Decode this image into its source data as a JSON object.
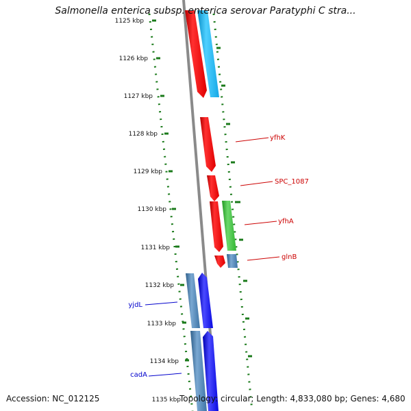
{
  "title": "Salmonella enterica subsp. enterica serovar Paratyphi C stra...",
  "ticks": [
    {
      "label": "1125 kbp"
    },
    {
      "label": "1126 kbp"
    },
    {
      "label": "1127 kbp"
    },
    {
      "label": "1128 kbp"
    },
    {
      "label": "1129 kbp"
    },
    {
      "label": "1130 kbp"
    },
    {
      "label": "1131 kbp"
    },
    {
      "label": "1132 kbp"
    },
    {
      "label": "1133 kbp"
    },
    {
      "label": "1134 kbp"
    },
    {
      "label": "1135 kbp"
    }
  ],
  "gene_labels": {
    "yfhK": "yfhK",
    "SPC_1087": "SPC_1087",
    "yfhA": "yfhA",
    "glnB": "glnB",
    "yjdL": "yjdL",
    "cadA": "cadA"
  },
  "footer": {
    "accession": "Accession: NC_012125",
    "summary": "Topology: circular; Length: 4,833,080 bp; Genes: 4,680"
  },
  "colors": {
    "red": "#ff0000",
    "cyan": "#1ab8f0",
    "green": "#3bbf3b",
    "steel": "#4a82b4",
    "blue": "#1010ee",
    "backbone": "#8a8a8a",
    "gc_dots": "#1a7a1a",
    "label_red": "#cc0000",
    "label_blue": "#0000cc"
  }
}
